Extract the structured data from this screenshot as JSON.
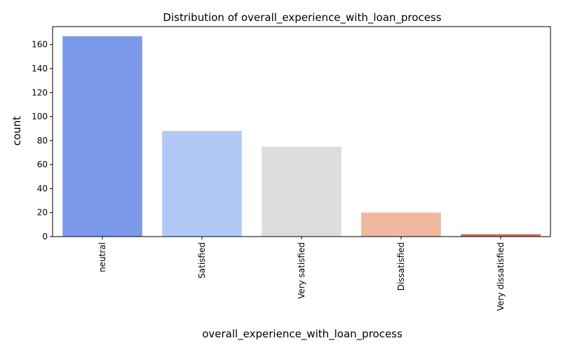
{
  "chart_data": {
    "type": "bar",
    "title": "Distribution of overall_experience_with_loan_process",
    "xlabel": "overall_experience_with_loan_process",
    "ylabel": "count",
    "categories": [
      "neutral",
      "Satisfied",
      "Very satisfied",
      "Dissatisfied",
      "Very dissatisfied"
    ],
    "values": [
      167,
      88,
      75,
      20,
      2
    ],
    "colors": [
      "#7b9aea",
      "#b3c9f5",
      "#dddddd",
      "#f0b99f",
      "#d3695c"
    ],
    "ylim": [
      0,
      175
    ],
    "yticks": [
      0,
      20,
      40,
      60,
      80,
      100,
      120,
      140,
      160
    ],
    "grid": false,
    "legend": "none"
  }
}
